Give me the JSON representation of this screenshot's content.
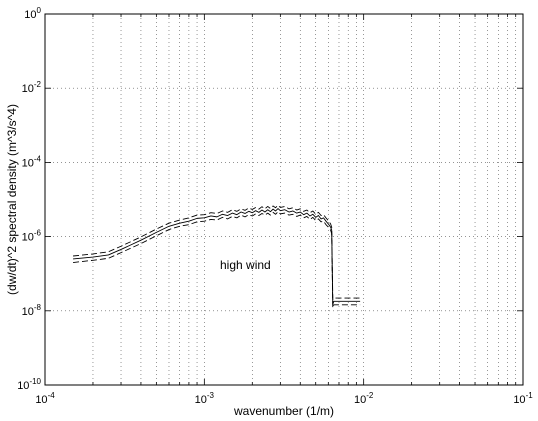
{
  "chart_data": {
    "type": "line",
    "xscale": "log",
    "yscale": "log",
    "xlim": [
      0.0001,
      0.1
    ],
    "ylim": [
      1e-10,
      1
    ],
    "grid": true,
    "xlabel": "wavenumber (1/m)",
    "ylabel": "(dw/dt)^2 spectral density (m^3/s^4)",
    "annotation": "high wind",
    "x_ticks": [
      {
        "base": "10",
        "exp": "-4",
        "value": 0.0001
      },
      {
        "base": "10",
        "exp": "-3",
        "value": 0.001
      },
      {
        "base": "10",
        "exp": "-2",
        "value": 0.01
      },
      {
        "base": "10",
        "exp": "-1",
        "value": 0.1
      }
    ],
    "y_ticks": [
      {
        "base": "10",
        "exp": "0",
        "value": 1
      },
      {
        "base": "10",
        "exp": "-2",
        "value": 0.01
      },
      {
        "base": "10",
        "exp": "-4",
        "value": 0.0001
      },
      {
        "base": "10",
        "exp": "-6",
        "value": 1e-06
      },
      {
        "base": "10",
        "exp": "-8",
        "value": 1e-08
      },
      {
        "base": "10",
        "exp": "-10",
        "value": 1e-10
      }
    ],
    "series": [
      {
        "style": "solid",
        "x": [
          0.00015,
          0.0002,
          0.00025,
          0.0003,
          0.0004,
          0.0005,
          0.0006,
          0.0007,
          0.0008,
          0.0009,
          0.001,
          0.0011,
          0.0012,
          0.0013,
          0.0014,
          0.0015,
          0.0016,
          0.0017,
          0.0018,
          0.0019,
          0.002,
          0.0021,
          0.0022,
          0.0023,
          0.0024,
          0.0025,
          0.0026,
          0.0027,
          0.0028,
          0.0029,
          0.003,
          0.0032,
          0.0034,
          0.0036,
          0.0038,
          0.004,
          0.0042,
          0.0044,
          0.0046,
          0.0048,
          0.005,
          0.0052,
          0.0054,
          0.0056,
          0.0058,
          0.006,
          0.0062,
          0.0063,
          0.0064,
          0.0065,
          0.0075,
          0.0085,
          0.0095
        ],
        "y": [
          2.5e-07,
          2.8e-07,
          3.2e-07,
          4.5e-07,
          8e-07,
          1.3e-06,
          1.9e-06,
          2.3e-06,
          2.6e-06,
          3.1e-06,
          3.2e-06,
          3.6e-06,
          3.4e-06,
          4e-06,
          3.7e-06,
          4.3e-06,
          3.9e-06,
          4.6e-06,
          4.2e-06,
          4.8e-06,
          4.4e-06,
          5e-06,
          4.5e-06,
          5.2e-06,
          4.6e-06,
          5.3e-06,
          4.7e-06,
          5.5e-06,
          4.9e-06,
          5.7e-06,
          5e-06,
          5.3e-06,
          4.6e-06,
          4.9e-06,
          4.3e-06,
          4.6e-06,
          3.9e-06,
          4.3e-06,
          3.6e-06,
          4e-06,
          3.3e-06,
          3.7e-06,
          3e-06,
          3.2e-06,
          2.6e-06,
          2.2e-06,
          1.8e-06,
          1.5e-06,
          1.5e-08,
          1.8e-08,
          1.8e-08,
          1.8e-08,
          1.8e-08
        ]
      },
      {
        "style": "dashed",
        "x": [
          0.00015,
          0.0002,
          0.00025,
          0.0003,
          0.0004,
          0.0005,
          0.0006,
          0.0007,
          0.0008,
          0.0009,
          0.001,
          0.0011,
          0.0012,
          0.0013,
          0.0014,
          0.0015,
          0.0016,
          0.0017,
          0.0018,
          0.0019,
          0.002,
          0.0021,
          0.0022,
          0.0023,
          0.0024,
          0.0025,
          0.0026,
          0.0027,
          0.0028,
          0.0029,
          0.003,
          0.0032,
          0.0034,
          0.0036,
          0.0038,
          0.004,
          0.0042,
          0.0044,
          0.0046,
          0.0048,
          0.005,
          0.0052,
          0.0054,
          0.0056,
          0.0058,
          0.006,
          0.0062,
          0.0063,
          0.0064,
          0.0065,
          0.0075,
          0.0085,
          0.0095
        ],
        "y": [
          3e-07,
          3.4e-07,
          3.9e-07,
          5.5e-07,
          9.8e-07,
          1.6e-06,
          2.3e-06,
          2.8e-06,
          3.2e-06,
          3.8e-06,
          3.9e-06,
          4.4e-06,
          4.2e-06,
          4.9e-06,
          4.5e-06,
          5.3e-06,
          4.8e-06,
          5.6e-06,
          5.1e-06,
          5.9e-06,
          5.4e-06,
          6.1e-06,
          5.5e-06,
          6.4e-06,
          5.6e-06,
          6.5e-06,
          5.7e-06,
          6.7e-06,
          6e-06,
          7e-06,
          6.1e-06,
          6.5e-06,
          5.6e-06,
          6e-06,
          5.2e-06,
          5.6e-06,
          4.8e-06,
          5.2e-06,
          4.4e-06,
          4.9e-06,
          4e-06,
          4.5e-06,
          3.7e-06,
          3.9e-06,
          3.2e-06,
          2.7e-06,
          2.2e-06,
          1.8e-06,
          2e-08,
          2.2e-08,
          2.2e-08,
          2.2e-08,
          2.2e-08
        ]
      },
      {
        "style": "dashed",
        "x": [
          0.00015,
          0.0002,
          0.00025,
          0.0003,
          0.0004,
          0.0005,
          0.0006,
          0.0007,
          0.0008,
          0.0009,
          0.001,
          0.0011,
          0.0012,
          0.0013,
          0.0014,
          0.0015,
          0.0016,
          0.0017,
          0.0018,
          0.0019,
          0.002,
          0.0021,
          0.0022,
          0.0023,
          0.0024,
          0.0025,
          0.0026,
          0.0027,
          0.0028,
          0.0029,
          0.003,
          0.0032,
          0.0034,
          0.0036,
          0.0038,
          0.004,
          0.0042,
          0.0044,
          0.0046,
          0.0048,
          0.005,
          0.0052,
          0.0054,
          0.0056,
          0.0058,
          0.006,
          0.0062,
          0.0063,
          0.0064,
          0.0065,
          0.0075,
          0.0085,
          0.0095
        ],
        "y": [
          2e-07,
          2.3e-07,
          2.6e-07,
          3.7e-07,
          6.5e-07,
          1.05e-06,
          1.55e-06,
          1.9e-06,
          2.1e-06,
          2.5e-06,
          2.6e-06,
          2.9e-06,
          2.8e-06,
          3.3e-06,
          3e-06,
          3.5e-06,
          3.2e-06,
          3.8e-06,
          3.4e-06,
          3.9e-06,
          3.6e-06,
          4.1e-06,
          3.7e-06,
          4.2e-06,
          3.8e-06,
          4.3e-06,
          3.8e-06,
          4.5e-06,
          4e-06,
          4.7e-06,
          4.1e-06,
          4.3e-06,
          3.8e-06,
          4e-06,
          3.5e-06,
          3.8e-06,
          3.2e-06,
          3.5e-06,
          2.9e-06,
          3.3e-06,
          2.7e-06,
          3e-06,
          2.5e-06,
          2.6e-06,
          2.1e-06,
          1.8e-06,
          1.5e-06,
          1.2e-06,
          1.2e-08,
          1.45e-08,
          1.45e-08,
          1.45e-08,
          1.45e-08
        ]
      }
    ]
  }
}
